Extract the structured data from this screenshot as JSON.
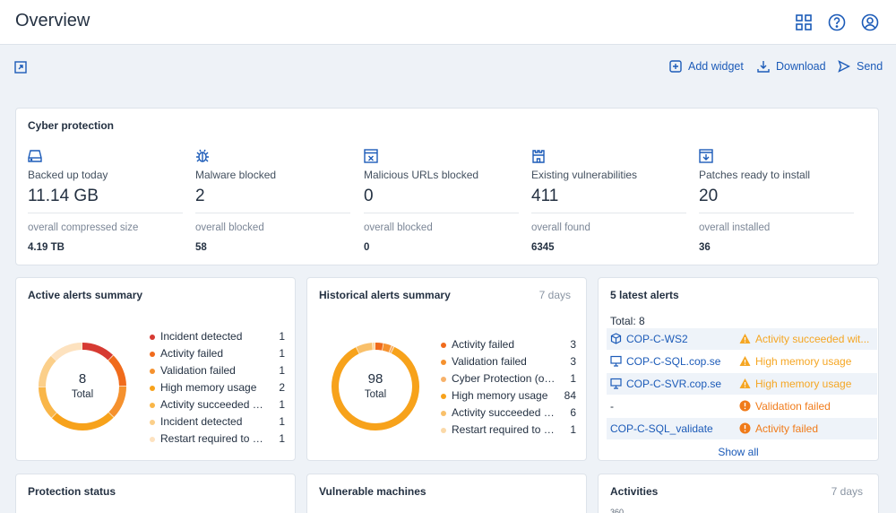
{
  "header": {
    "title": "Overview",
    "icons": [
      "grid-icon",
      "help-icon",
      "account-icon"
    ]
  },
  "toolbar": {
    "add_widget": "Add widget",
    "download": "Download",
    "send": "Send"
  },
  "cyber": {
    "title": "Cyber protection",
    "stats": [
      {
        "icon": "drive-icon",
        "label": "Backed up today",
        "value": "11.14 GB",
        "sub": "overall compressed size",
        "subval": "4.19 TB"
      },
      {
        "icon": "bug-icon",
        "label": "Malware blocked",
        "value": "2",
        "sub": "overall blocked",
        "subval": "58"
      },
      {
        "icon": "blocked-url-icon",
        "label": "Malicious URLs blocked",
        "value": "0",
        "sub": "overall blocked",
        "subval": "0"
      },
      {
        "icon": "castle-icon",
        "label": "Existing vulnerabilities",
        "value": "411",
        "sub": "overall found",
        "subval": "6345"
      },
      {
        "icon": "patch-icon",
        "label": "Patches ready to install",
        "value": "20",
        "sub": "overall installed",
        "subval": "36"
      }
    ]
  },
  "active": {
    "title": "Active alerts summary",
    "total": "8",
    "total_label": "Total",
    "items": [
      {
        "label": "Incident detected",
        "count": "1",
        "color": "#d63a32"
      },
      {
        "label": "Activity failed",
        "count": "1",
        "color": "#f06b1c"
      },
      {
        "label": "Validation failed",
        "count": "1",
        "color": "#f5912e"
      },
      {
        "label": "High memory usage",
        "count": "2",
        "color": "#f7a21b"
      },
      {
        "label": "Activity succeeded wit...",
        "count": "1",
        "color": "#f9b648"
      },
      {
        "label": "Incident detected",
        "count": "1",
        "color": "#fbcf8a"
      },
      {
        "label": "Restart required to co...",
        "count": "1",
        "color": "#fde2bf"
      }
    ]
  },
  "historical": {
    "title": "Historical alerts summary",
    "period": "7 days",
    "total": "98",
    "total_label": "Total",
    "items": [
      {
        "label": "Activity failed",
        "count": "3",
        "color": "#f06b1c"
      },
      {
        "label": "Validation failed",
        "count": "3",
        "color": "#f5912e"
      },
      {
        "label": "Cyber Protection (or ...",
        "count": "1",
        "color": "#f7b26a"
      },
      {
        "label": "High memory usage",
        "count": "84",
        "color": "#f7a21b"
      },
      {
        "label": "Activity succeeded wi...",
        "count": "6",
        "color": "#f9c06a"
      },
      {
        "label": "Restart required to c...",
        "count": "1",
        "color": "#fbd9a8"
      }
    ]
  },
  "latest": {
    "title": "5 latest alerts",
    "total": "Total: 8",
    "show_all": "Show all",
    "rows": [
      {
        "icon": "cube-icon",
        "name": "COP-C-WS2",
        "status": "Activity succeeded wit...",
        "severity": "warning"
      },
      {
        "icon": "monitor-icon",
        "name": "COP-C-SQL.cop.se",
        "status": "High memory usage",
        "severity": "warning"
      },
      {
        "icon": "monitor-icon",
        "name": "COP-C-SVR.cop.se",
        "status": "High memory usage",
        "severity": "warning"
      },
      {
        "icon": "",
        "name": "-",
        "status": "Validation failed",
        "severity": "error"
      },
      {
        "icon": "",
        "name": "COP-C-SQL_validate",
        "status": "Activity failed",
        "severity": "error"
      }
    ],
    "colors": {
      "warning": "#f5a623",
      "error": "#f07b1a"
    }
  },
  "bottom": {
    "protection": "Protection status",
    "vulnerable": "Vulnerable machines",
    "activities": "Activities",
    "activities_period": "7 days",
    "activities_axis": "360"
  }
}
